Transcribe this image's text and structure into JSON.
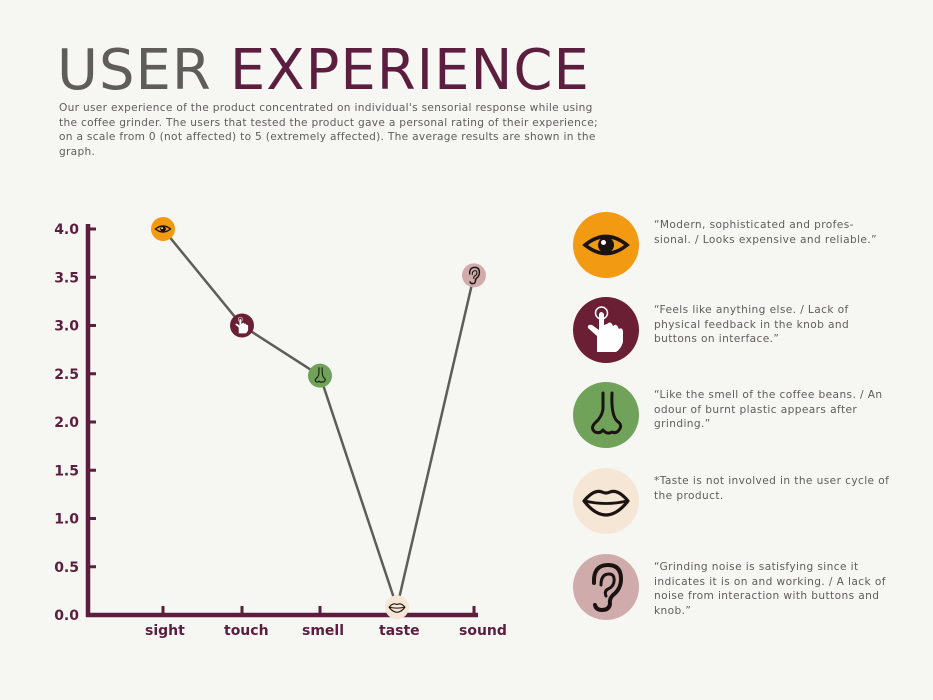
{
  "header": {
    "title_word1": "USER",
    "title_word2": "EXPERIENCE",
    "intro": "Our user experience of the product concentrated on individual's sensorial response while using the coffee grinder. The users that tested the product gave a personal rating of their experience; on a scale from 0 (not affected) to 5 (extremely affected).  The average results are shown in the graph."
  },
  "colors": {
    "sight": "#f19a12",
    "touch": "#6b1f34",
    "smell": "#70a25a",
    "taste": "#f6e6d6",
    "sound": "#cfacab",
    "axis": "#5b1e3e",
    "line": "#5f5d5a"
  },
  "chart_data": {
    "type": "line",
    "title": "",
    "xlabel": "",
    "ylabel": "",
    "categories": [
      "sight",
      "touch",
      "smell",
      "taste",
      "sound"
    ],
    "values": [
      4.0,
      3.0,
      2.48,
      0.08,
      3.52
    ],
    "ylim": [
      0,
      4
    ],
    "yticks": [
      "0.0",
      "0.5",
      "1.0",
      "1.5",
      "2.0",
      "2.5",
      "3.0",
      "3.5",
      "4.0"
    ],
    "grid": false,
    "point_icons": [
      "eye-icon",
      "hand-icon",
      "nose-icon",
      "lips-icon",
      "ear-icon"
    ]
  },
  "quotes": [
    {
      "sense": "sight",
      "icon": "eye-icon",
      "text": "“Modern, sophisticated and profes- sional. / Looks expensive and reliable.”"
    },
    {
      "sense": "touch",
      "icon": "hand-icon",
      "text": "“Feels like anything else. / Lack of physical feedback in the knob and buttons on interface.”"
    },
    {
      "sense": "smell",
      "icon": "nose-icon",
      "text": "“Like the smell of the coffee beans. / An odour of burnt plastic appears after grinding.”"
    },
    {
      "sense": "taste",
      "icon": "lips-icon",
      "text": "*Taste is not involved in the user cycle of the product."
    },
    {
      "sense": "sound",
      "icon": "ear-icon",
      "text": "“Grinding noise is satisfying since it indicates it is on and working. /  A lack of noise from interaction with buttons and knob.”"
    }
  ]
}
